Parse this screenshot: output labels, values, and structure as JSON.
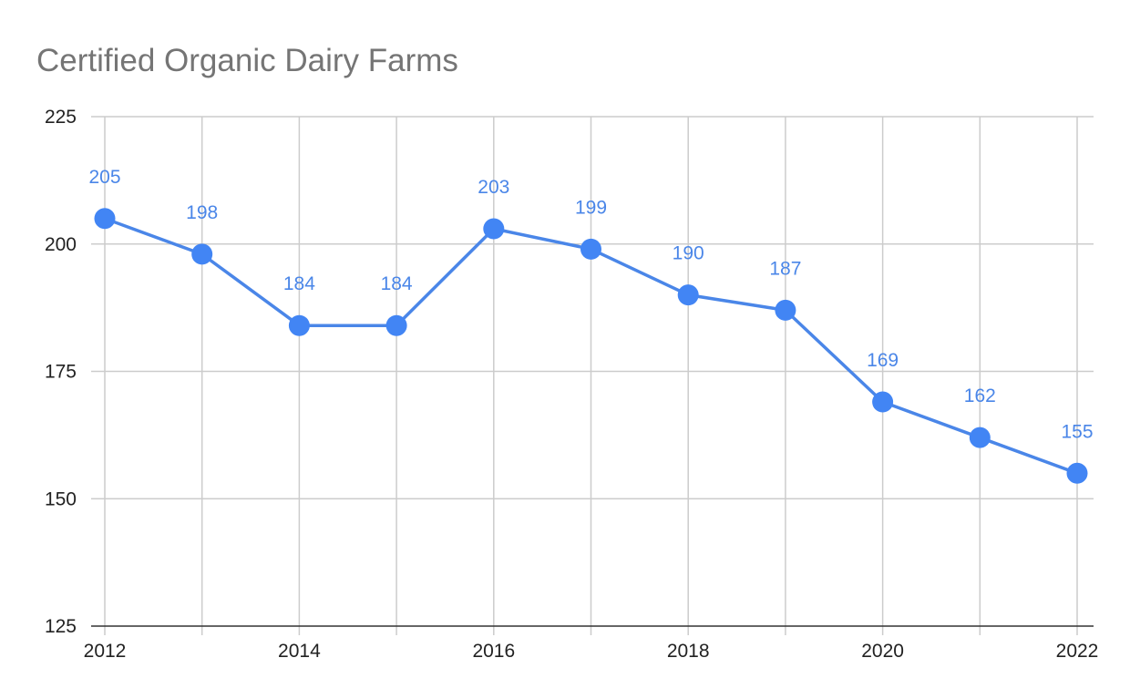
{
  "chart_data": {
    "type": "line",
    "title": "Certified Organic Dairy Farms",
    "xlabel": "",
    "ylabel": "",
    "x": [
      2012,
      2013,
      2014,
      2015,
      2016,
      2017,
      2018,
      2019,
      2020,
      2021,
      2022
    ],
    "series": [
      {
        "values": [
          205,
          198,
          184,
          184,
          203,
          199,
          190,
          187,
          169,
          162,
          155
        ]
      }
    ],
    "data_labels": [
      "205",
      "198",
      "184",
      "184",
      "203",
      "199",
      "190",
      "187",
      "169",
      "162",
      "155"
    ],
    "xticks": [
      2012,
      2014,
      2016,
      2018,
      2020,
      2022
    ],
    "xtick_labels": [
      "2012",
      "2014",
      "2016",
      "2018",
      "2020",
      "2022"
    ],
    "yticks": [
      125,
      150,
      175,
      200,
      225
    ],
    "ytick_labels": [
      "125",
      "150",
      "175",
      "200",
      "225"
    ],
    "xlim": [
      2012,
      2022
    ],
    "ylim": [
      125,
      225
    ],
    "grid": true,
    "legend": "none",
    "colors": {
      "line": "#4a86e8",
      "marker": "#4285f4",
      "data_label": "#4a86e8",
      "title": "#757575",
      "grid": "#cccccc",
      "axis": "#333333",
      "tick_label": "#222222"
    }
  }
}
